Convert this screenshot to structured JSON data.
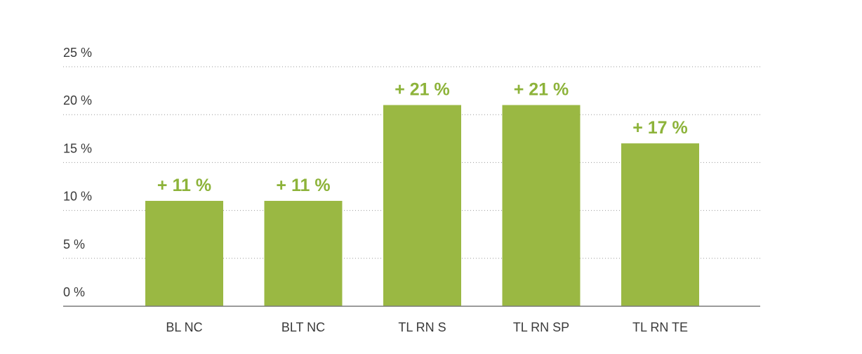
{
  "chart_data": {
    "type": "bar",
    "categories": [
      "BL NC",
      "BLT NC",
      "TL RN S",
      "TL RN SP",
      "TL RN TE"
    ],
    "values": [
      11,
      11,
      21,
      21,
      17
    ],
    "value_labels": [
      "+ 11 %",
      "+ 11 %",
      "+ 21 %",
      "+ 21 %",
      "+ 17 %"
    ],
    "ylim": [
      0,
      25
    ],
    "yticks": [
      0,
      5,
      10,
      15,
      20,
      25
    ],
    "ytick_labels": [
      "0 %",
      "5 %",
      "10 %",
      "15 %",
      "20 %",
      "25 %"
    ],
    "title": "",
    "xlabel": "",
    "ylabel": "",
    "grid": true,
    "bar_color": "#9ab843",
    "label_color": "#8db33a"
  }
}
